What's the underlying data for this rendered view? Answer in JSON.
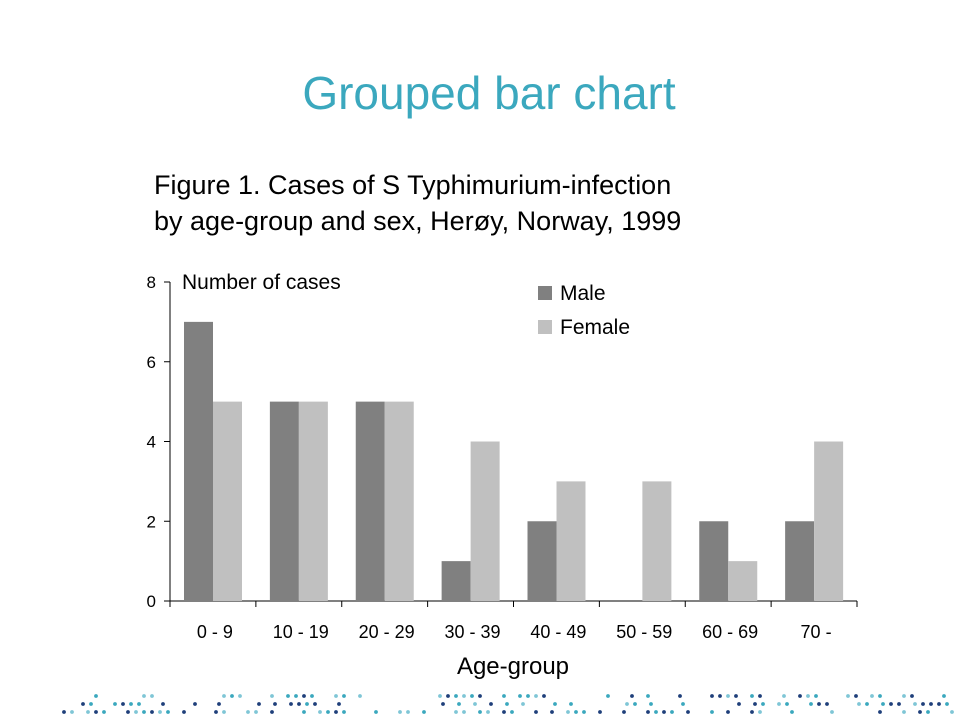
{
  "slide": {
    "title": "Grouped bar chart"
  },
  "chart_data": {
    "type": "bar",
    "title_lines": [
      "Figure 1. Cases of S Typhimurium-infection",
      "by age-group and sex, Herøy, Norway, 1999"
    ],
    "xlabel": "Age-group",
    "ylabel": "Number of cases",
    "ylim": [
      0,
      8
    ],
    "yticks": [
      0,
      2,
      4,
      6,
      8
    ],
    "categories": [
      "0 - 9",
      "10 - 19",
      "20 - 29",
      "30 - 39",
      "40 - 49",
      "50 - 59",
      "60 - 69",
      "70 -"
    ],
    "series": [
      {
        "name": "Male",
        "color": "#808080",
        "values": [
          7,
          5,
          5,
          1,
          2,
          0,
          2,
          2
        ]
      },
      {
        "name": "Female",
        "color": "#c0c0c0",
        "values": [
          5,
          5,
          5,
          4,
          3,
          3,
          1,
          4
        ]
      }
    ],
    "legend_position": "top-right",
    "grid": false
  },
  "decor": {
    "dot_colors": [
      "#1f3f7a",
      "#3ba8be",
      "#7fc6d6"
    ]
  }
}
